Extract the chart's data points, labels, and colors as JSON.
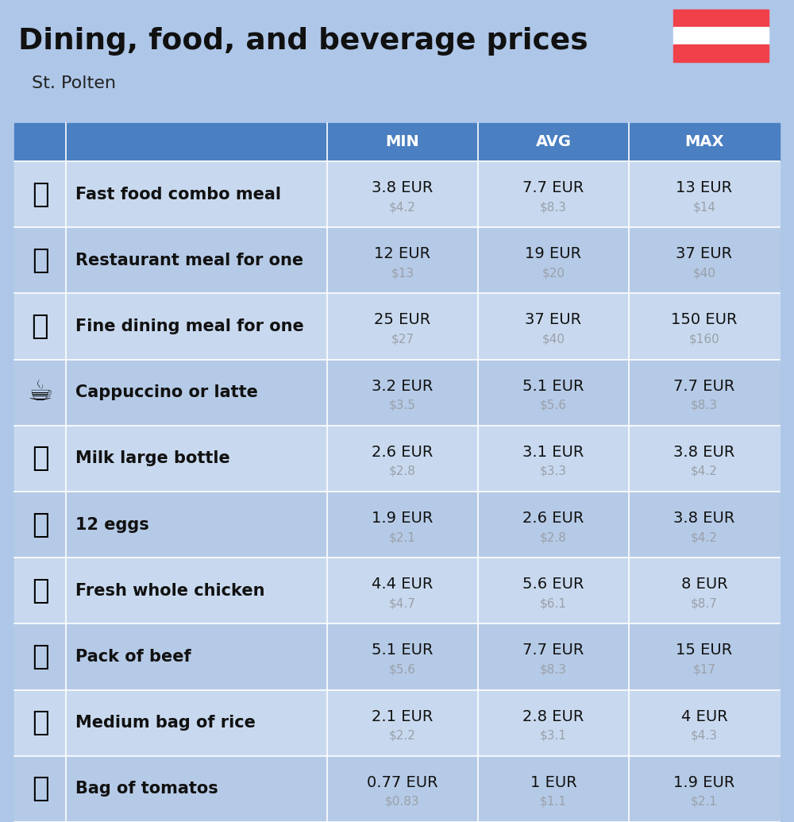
{
  "title": "Dining, food, and beverage prices",
  "subtitle": "St. Polten",
  "header_bg": "#4a7fc1",
  "header_text_color": "#ffffff",
  "title_bg": "#aec6e8",
  "row_bg_light": "#c8d9ef",
  "row_bg_dark": "#b5cae6",
  "col_headers": [
    "MIN",
    "AVG",
    "MAX"
  ],
  "rows": [
    {
      "label": "Fast food combo meal",
      "min_eur": "3.8 EUR",
      "min_usd": "$4.2",
      "avg_eur": "7.7 EUR",
      "avg_usd": "$8.3",
      "max_eur": "13 EUR",
      "max_usd": "$14"
    },
    {
      "label": "Restaurant meal for one",
      "min_eur": "12 EUR",
      "min_usd": "$13",
      "avg_eur": "19 EUR",
      "avg_usd": "$20",
      "max_eur": "37 EUR",
      "max_usd": "$40"
    },
    {
      "label": "Fine dining meal for one",
      "min_eur": "25 EUR",
      "min_usd": "$27",
      "avg_eur": "37 EUR",
      "avg_usd": "$40",
      "max_eur": "150 EUR",
      "max_usd": "$160"
    },
    {
      "label": "Cappuccino or latte",
      "min_eur": "3.2 EUR",
      "min_usd": "$3.5",
      "avg_eur": "5.1 EUR",
      "avg_usd": "$5.6",
      "max_eur": "7.7 EUR",
      "max_usd": "$8.3"
    },
    {
      "label": "Milk large bottle",
      "min_eur": "2.6 EUR",
      "min_usd": "$2.8",
      "avg_eur": "3.1 EUR",
      "avg_usd": "$3.3",
      "max_eur": "3.8 EUR",
      "max_usd": "$4.2"
    },
    {
      "label": "12 eggs",
      "min_eur": "1.9 EUR",
      "min_usd": "$2.1",
      "avg_eur": "2.6 EUR",
      "avg_usd": "$2.8",
      "max_eur": "3.8 EUR",
      "max_usd": "$4.2"
    },
    {
      "label": "Fresh whole chicken",
      "min_eur": "4.4 EUR",
      "min_usd": "$4.7",
      "avg_eur": "5.6 EUR",
      "avg_usd": "$6.1",
      "max_eur": "8 EUR",
      "max_usd": "$8.7"
    },
    {
      "label": "Pack of beef",
      "min_eur": "5.1 EUR",
      "min_usd": "$5.6",
      "avg_eur": "7.7 EUR",
      "avg_usd": "$8.3",
      "max_eur": "15 EUR",
      "max_usd": "$17"
    },
    {
      "label": "Medium bag of rice",
      "min_eur": "2.1 EUR",
      "min_usd": "$2.2",
      "avg_eur": "2.8 EUR",
      "avg_usd": "$3.1",
      "max_eur": "4 EUR",
      "max_usd": "$4.3"
    },
    {
      "label": "Bag of tomatos",
      "min_eur": "0.77 EUR",
      "min_usd": "$0.83",
      "avg_eur": "1 EUR",
      "avg_usd": "$1.1",
      "max_eur": "1.9 EUR",
      "max_usd": "$2.1"
    }
  ],
  "flag_red": "#f0404a",
  "flag_white": "#ffffff",
  "usd_color": "#9aA0AA",
  "icon_emojis": [
    "🍔",
    "🍳",
    "🍽️",
    "☕",
    "🥛",
    "🥚",
    "🐔",
    "🥩",
    "🍚",
    "🍅"
  ]
}
